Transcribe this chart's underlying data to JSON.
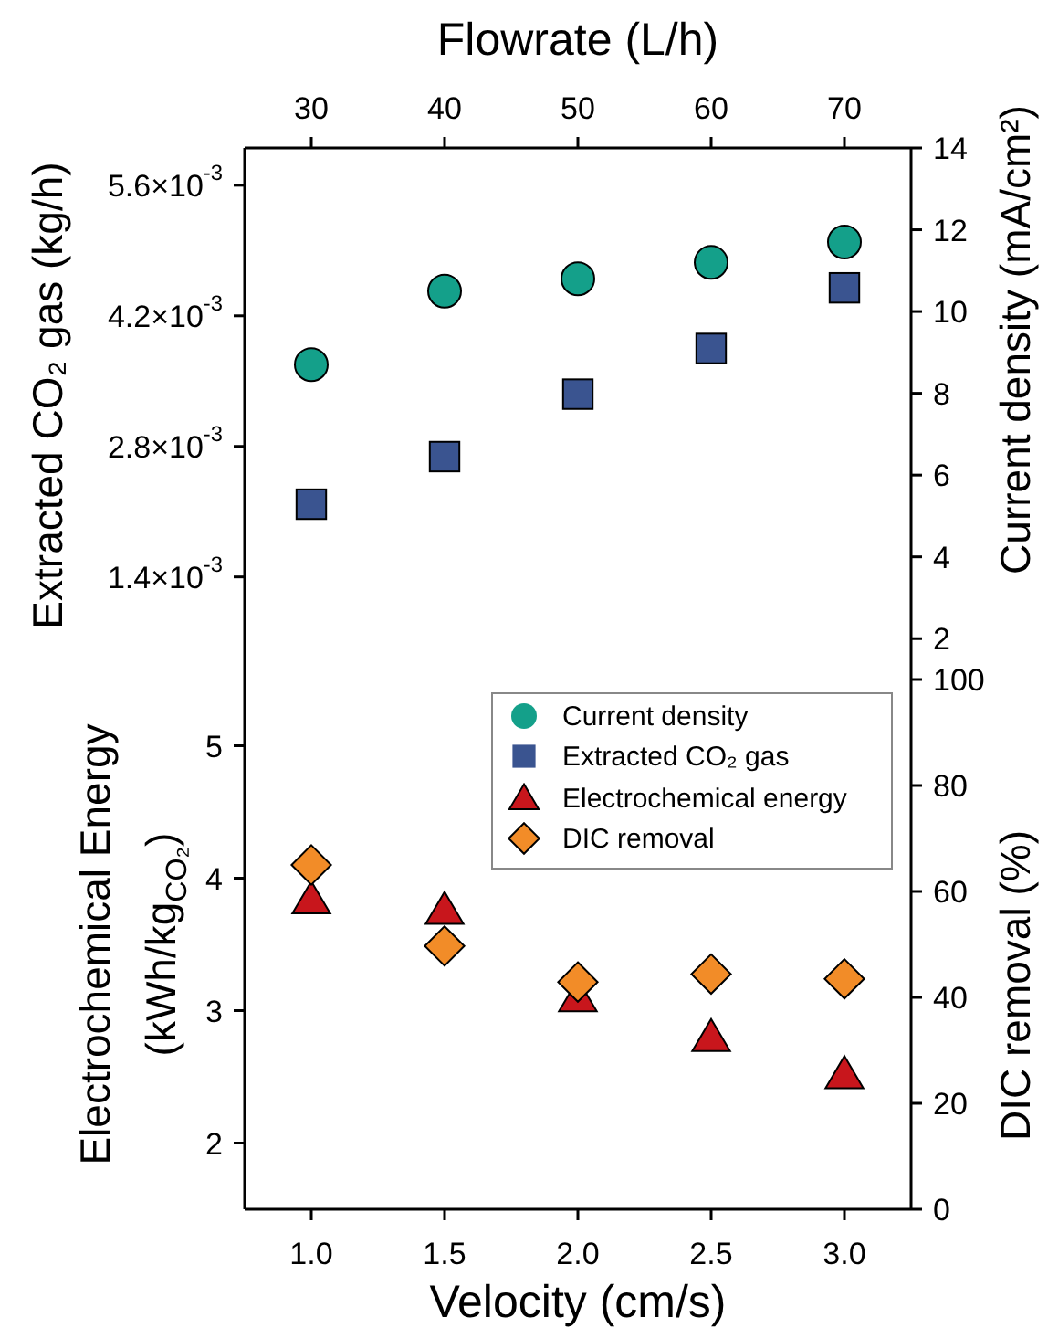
{
  "chart_data": [
    {
      "type": "scatter",
      "xlabel": "Flowrate (L/h)",
      "ylabel": "Extracted CO₂ gas (kg/h)",
      "y2label": "Current density (mA/cm²)",
      "x": [
        30,
        40,
        50,
        60,
        70
      ],
      "xlim": [
        25,
        75
      ],
      "xticks": [
        30,
        40,
        50,
        60,
        70
      ],
      "ylim": [
        0.0003,
        0.006
      ],
      "yticks": [
        {
          "value": 0.0014,
          "label": "1.4×10$^{-3}$"
        },
        {
          "value": 0.0028,
          "label": "2.8×10$^{-3}$"
        },
        {
          "value": 0.0042,
          "label": "4.2×10$^{-3}$"
        },
        {
          "value": 0.0056,
          "label": "5.6×10$^{-3}$"
        }
      ],
      "y2lim": [
        1,
        14
      ],
      "y2ticks": [
        2,
        4,
        6,
        8,
        10,
        12,
        14
      ],
      "grid": false,
      "legend": "bottom right",
      "series": [
        {
          "name": "Current density",
          "color": "#14a08a",
          "marker": "circle",
          "axis": "y2",
          "values": [
            8.7,
            10.5,
            10.8,
            11.2,
            11.7
          ]
        },
        {
          "name": "Extracted CO₂ gas",
          "color": "#3a5490",
          "marker": "square",
          "values": [
            0.00218,
            0.00269,
            0.00336,
            0.00385,
            0.0045
          ]
        }
      ]
    },
    {
      "type": "scatter",
      "xlabel": "Velocity (cm/s)",
      "ylabel": "Electrochemical Energy\n(kWh/kg$_{CO₂}$)",
      "y2label": "DIC removal (%)",
      "x": [
        1,
        1.5,
        2,
        2.5,
        3
      ],
      "xlim": [
        0.75,
        3.25
      ],
      "xticks": [
        {
          "value": 1,
          "label": "1.0"
        },
        {
          "value": 1.5,
          "label": "1.5"
        },
        {
          "value": 2,
          "label": "2.0"
        },
        {
          "value": 2.5,
          "label": "2.5"
        },
        {
          "value": 3,
          "label": "3.0"
        }
      ],
      "ylim": [
        1.5,
        5.5
      ],
      "yticks": [
        2,
        3,
        4,
        5
      ],
      "y2lim": [
        0,
        100
      ],
      "y2ticks": [
        0,
        20,
        40,
        60,
        80,
        100
      ],
      "grid": false,
      "legend": "top right",
      "series": [
        {
          "name": "Electrochemical energy",
          "color": "#c8161c",
          "marker": "triangle",
          "values": [
            3.84,
            3.76,
            3.1,
            2.8,
            2.52
          ]
        },
        {
          "name": "DIC removal",
          "color": "#f28c28",
          "marker": "diamond",
          "axis": "y2",
          "values": [
            65,
            49.7,
            42.9,
            44.4,
            43.5
          ]
        }
      ]
    }
  ]
}
